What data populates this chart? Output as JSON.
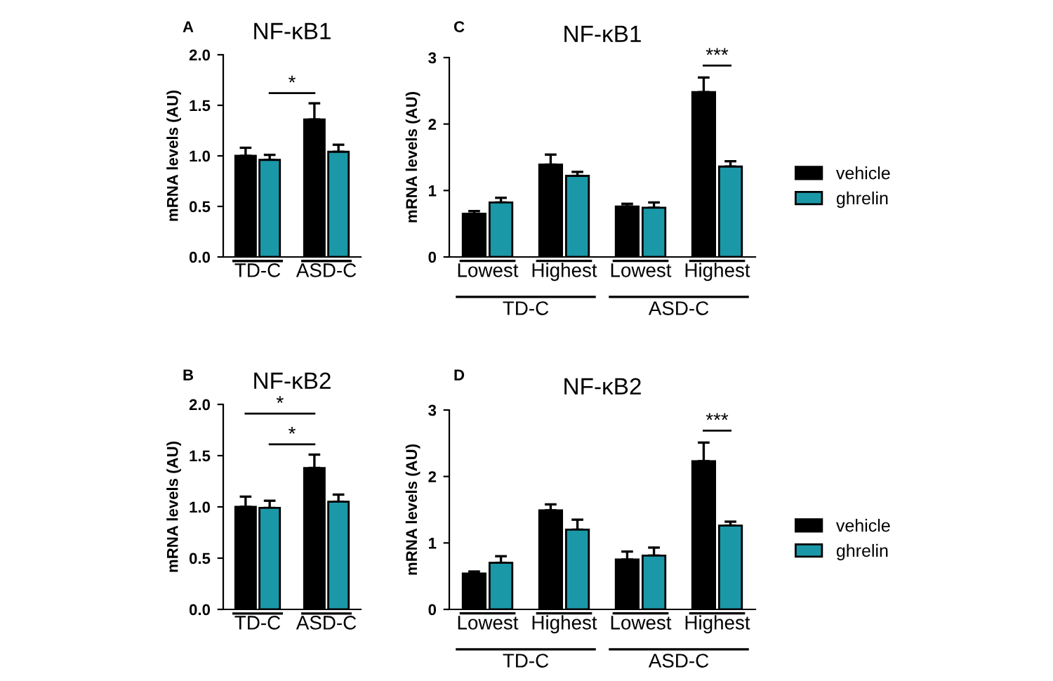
{
  "chart_data": [
    {
      "type": "bar",
      "title": "NF-κB1",
      "ylabel": "mRNA levels (AU)",
      "categories": [
        "TD-C",
        "ASD-C"
      ],
      "ylim": [
        0,
        2
      ],
      "yticks": [
        {
          "value": 0,
          "label": "0.0"
        },
        {
          "value": 0.5,
          "label": "0.5"
        },
        {
          "value": 1,
          "label": "1.0"
        },
        {
          "value": 1.5,
          "label": "1.5"
        },
        {
          "value": 2,
          "label": "2.0"
        }
      ],
      "grid": false,
      "legend": false,
      "annotations": [
        "A",
        "*"
      ],
      "series": [
        {
          "color": "#000000",
          "values": [
            1.0,
            1.36
          ],
          "errors": [
            [
              1.0,
              1.08
            ],
            [
              1.36,
              1.52
            ]
          ]
        },
        {
          "color": "#1b98a8",
          "values": [
            0.96,
            1.04
          ],
          "errors": [
            [
              0.96,
              1.01
            ],
            [
              1.04,
              1.11
            ]
          ]
        }
      ]
    },
    {
      "type": "bar",
      "title": "NF-κB1",
      "ylabel": "mRNA levels (AU)",
      "categories": [
        "Lowest",
        "Highest",
        "Lowest",
        "Highest"
      ],
      "ylim": [
        0,
        3
      ],
      "yticks": [
        0,
        1,
        2,
        3
      ],
      "grid": false,
      "legend": "right",
      "annotations": [
        "C",
        "***",
        "TD-C",
        "ASD-C"
      ],
      "series": [
        {
          "name": "vehicle",
          "color": "#000000",
          "values": [
            0.65,
            1.39,
            0.76,
            2.48
          ],
          "errors": [
            [
              0.65,
              0.69
            ],
            [
              1.39,
              1.54
            ],
            [
              0.76,
              0.8
            ],
            [
              2.48,
              2.7
            ]
          ]
        },
        {
          "name": "ghrelin",
          "color": "#1b98a8",
          "values": [
            0.82,
            1.22,
            0.74,
            1.36
          ],
          "errors": [
            [
              0.82,
              0.89
            ],
            [
              1.22,
              1.28
            ],
            [
              0.74,
              0.82
            ],
            [
              1.36,
              1.44
            ]
          ]
        }
      ]
    },
    {
      "type": "bar",
      "title": "NF-κB2",
      "ylabel": "mRNA levels (AU)",
      "categories": [
        "TD-C",
        "ASD-C"
      ],
      "ylim": [
        0,
        2
      ],
      "yticks": [
        {
          "value": 0,
          "label": "0.0"
        },
        {
          "value": 0.5,
          "label": "0.5"
        },
        {
          "value": 1,
          "label": "1.0"
        },
        {
          "value": 1.5,
          "label": "1.5"
        },
        {
          "value": 2,
          "label": "2.0"
        }
      ],
      "grid": false,
      "legend": false,
      "annotations": [
        "B",
        "*",
        "*"
      ],
      "series": [
        {
          "color": "#000000",
          "values": [
            1.0,
            1.38
          ],
          "errors": [
            [
              1.0,
              1.1
            ],
            [
              1.38,
              1.51
            ]
          ]
        },
        {
          "color": "#1b98a8",
          "values": [
            0.99,
            1.05
          ],
          "errors": [
            [
              0.99,
              1.06
            ],
            [
              1.05,
              1.12
            ]
          ]
        }
      ]
    },
    {
      "type": "bar",
      "title": "NF-κB2",
      "ylabel": "mRNA levels (AU)",
      "categories": [
        "Lowest",
        "Highest",
        "Lowest",
        "Highest"
      ],
      "ylim": [
        0,
        3
      ],
      "yticks": [
        0,
        1,
        2,
        3
      ],
      "grid": false,
      "legend": "right",
      "annotations": [
        "D",
        "***",
        "TD-C",
        "ASD-C"
      ],
      "series": [
        {
          "name": "vehicle",
          "color": "#000000",
          "values": [
            0.54,
            1.49,
            0.75,
            2.23
          ],
          "errors": [
            [
              0.54,
              0.57
            ],
            [
              1.49,
              1.58
            ],
            [
              0.75,
              0.87
            ],
            [
              2.23,
              2.51
            ]
          ]
        },
        {
          "name": "ghrelin",
          "color": "#1b98a8",
          "values": [
            0.7,
            1.2,
            0.81,
            1.26
          ],
          "errors": [
            [
              0.7,
              0.8
            ],
            [
              1.2,
              1.35
            ],
            [
              0.81,
              0.93
            ],
            [
              1.26,
              1.32
            ]
          ]
        }
      ]
    }
  ]
}
